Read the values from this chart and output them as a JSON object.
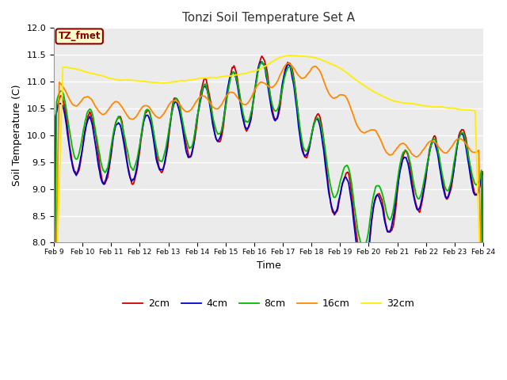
{
  "title": "Tonzi Soil Temperature Set A",
  "xlabel": "Time",
  "ylabel": "Soil Temperature (C)",
  "ylim": [
    8.0,
    12.0
  ],
  "yticks": [
    8.0,
    8.5,
    9.0,
    9.5,
    10.0,
    10.5,
    11.0,
    11.5,
    12.0
  ],
  "label_text": "TZ_fmet",
  "label_bg": "#ffffcc",
  "label_border": "#8b0000",
  "plot_bg": "#ebebeb",
  "line_colors": [
    "#cc0000",
    "#0000cc",
    "#00bb00",
    "#ff8800",
    "#ffee00"
  ],
  "line_labels": [
    "2cm",
    "4cm",
    "8cm",
    "16cm",
    "32cm"
  ],
  "n_points": 480,
  "dates": [
    "Feb 9",
    "Feb 10",
    "Feb 11",
    "Feb 12",
    "Feb 13",
    "Feb 14",
    "Feb 15",
    "Feb 16",
    "Feb 17",
    "Feb 18",
    "Feb 19",
    "Feb 20",
    "Feb 21",
    "Feb 22",
    "Feb 23",
    "Feb 24"
  ]
}
